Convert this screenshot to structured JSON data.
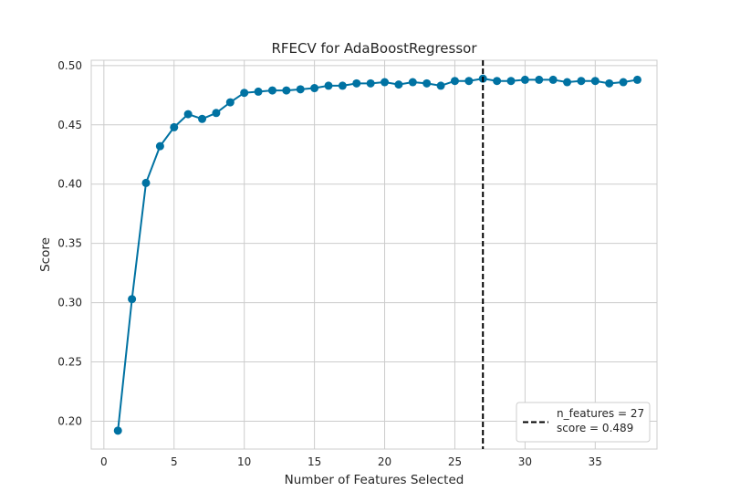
{
  "chart_data": {
    "type": "line",
    "title": "RFECV for AdaBoostRegressor",
    "xlabel": "Number of Features Selected",
    "ylabel": "Score",
    "xlim": [
      -0.9,
      39.4
    ],
    "ylim": [
      0.1765,
      0.5045
    ],
    "xticks": [
      0,
      5,
      10,
      15,
      20,
      25,
      30,
      35
    ],
    "yticks": [
      0.2,
      0.25,
      0.3,
      0.35,
      0.4,
      0.45,
      0.5
    ],
    "ytick_labels": [
      "0.20",
      "0.25",
      "0.30",
      "0.35",
      "0.40",
      "0.45",
      "0.50"
    ],
    "grid": true,
    "series": [
      {
        "color": "#0072a2",
        "x": [
          1,
          2,
          3,
          4,
          5,
          6,
          7,
          8,
          9,
          10,
          11,
          12,
          13,
          14,
          15,
          16,
          17,
          18,
          19,
          20,
          21,
          22,
          23,
          24,
          25,
          26,
          27,
          28,
          29,
          30,
          31,
          32,
          33,
          34,
          35,
          36,
          37,
          38
        ],
        "y": [
          0.192,
          0.303,
          0.401,
          0.432,
          0.448,
          0.459,
          0.455,
          0.46,
          0.469,
          0.477,
          0.478,
          0.479,
          0.479,
          0.48,
          0.481,
          0.483,
          0.483,
          0.485,
          0.485,
          0.486,
          0.484,
          0.486,
          0.485,
          0.483,
          0.487,
          0.487,
          0.489,
          0.487,
          0.487,
          0.488,
          0.488,
          0.488,
          0.486,
          0.487,
          0.487,
          0.485,
          0.486,
          0.488
        ]
      }
    ],
    "vline": {
      "x": 27,
      "color": "#000000",
      "style": "dashed"
    },
    "legend": {
      "placement": "lower-right",
      "lines": [
        "n_features = 27",
        "score = 0.489"
      ]
    }
  }
}
